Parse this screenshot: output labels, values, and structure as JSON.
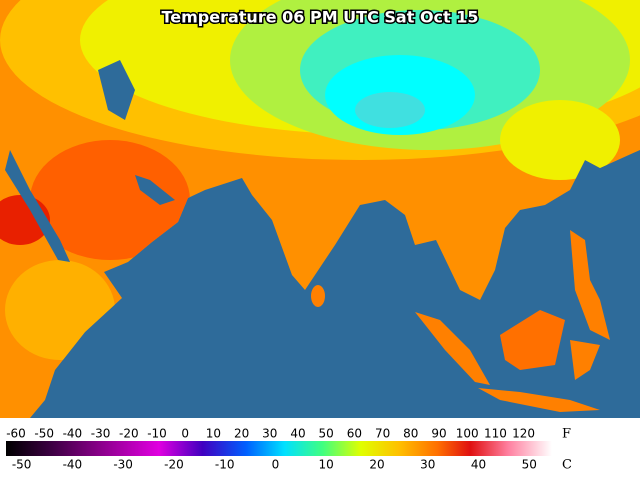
{
  "title": "Temperature 06 PM UTC Sat Oct 15",
  "legend": {
    "fahrenheit": {
      "unit": "F",
      "labels": [
        -60,
        -50,
        -40,
        -30,
        -20,
        -10,
        0,
        10,
        20,
        30,
        40,
        50,
        60,
        70,
        80,
        90,
        100,
        110,
        120
      ]
    },
    "celsius": {
      "unit": "C",
      "labels": [
        -50,
        -40,
        -30,
        -20,
        -10,
        0,
        10,
        20,
        30,
        40,
        50
      ]
    }
  }
}
